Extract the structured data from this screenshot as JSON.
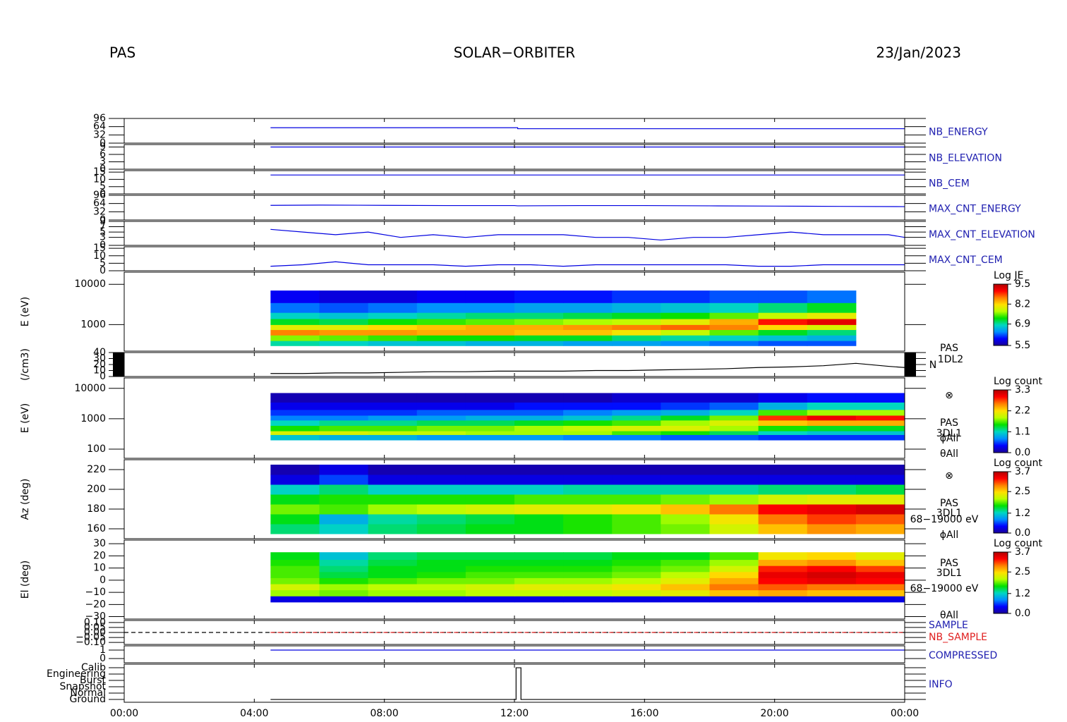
{
  "header": {
    "left": "PAS",
    "center": "SOLAR−ORBITER",
    "right": "23/Jan/2023"
  },
  "xaxis": {
    "xlim": [
      0,
      24
    ],
    "xticks": [
      {
        "value": 0,
        "label": "00:00"
      },
      {
        "value": 4,
        "label": "04:00"
      },
      {
        "value": 8,
        "label": "08:00"
      },
      {
        "value": 12,
        "label": "12:00"
      },
      {
        "value": 16,
        "label": "16:00"
      },
      {
        "value": 20,
        "label": "20:00"
      },
      {
        "value": 24,
        "label": "00:00"
      }
    ]
  },
  "colormap": [
    "#1a0096",
    "#0000ff",
    "#0090ff",
    "#00d8c0",
    "#00e000",
    "#b8ff00",
    "#ffe000",
    "#ff8000",
    "#ff0000",
    "#b00000"
  ],
  "chart_data": [
    {
      "type": "line",
      "names": [
        "NB_ENERGY"
      ],
      "name_colors": [
        "#2020b0"
      ],
      "ylim": [
        0,
        96
      ],
      "yticks": [
        0,
        32,
        64,
        96
      ],
      "series": [
        {
          "color": "#0000e0",
          "x": [
            4.5,
            12.1,
            12.1,
            24
          ],
          "values": [
            60,
            60,
            56,
            56
          ]
        }
      ]
    },
    {
      "type": "line",
      "names": [
        "NB_ELEVATION"
      ],
      "name_colors": [
        "#2020b0"
      ],
      "ylim": [
        0,
        10
      ],
      "yticks": [
        0,
        3,
        6,
        9
      ],
      "series": [
        {
          "color": "#0000e0",
          "x": [
            4.5,
            24
          ],
          "values": [
            9,
            9
          ]
        }
      ]
    },
    {
      "type": "line",
      "names": [
        "NB_CEM"
      ],
      "name_colors": [
        "#2020b0"
      ],
      "ylim": [
        0,
        16
      ],
      "yticks": [
        0,
        5,
        10,
        15
      ],
      "series": [
        {
          "color": "#0000e0",
          "x": [
            4.5,
            24
          ],
          "values": [
            13,
            13
          ]
        }
      ]
    },
    {
      "type": "line",
      "names": [
        "MAX_CNT_ENERGY"
      ],
      "name_colors": [
        "#2020b0"
      ],
      "ylim": [
        0,
        96
      ],
      "yticks": [
        0,
        32,
        64,
        96
      ],
      "series": [
        {
          "color": "#0000e0",
          "x": [
            4.5,
            6,
            8,
            10,
            12,
            12.1,
            14,
            16,
            18,
            20,
            22,
            24
          ],
          "values": [
            57,
            58,
            57,
            56,
            56,
            55,
            56,
            56,
            55,
            54,
            53,
            52
          ]
        }
      ]
    },
    {
      "type": "line",
      "names": [
        "MAX_CNT_ELEVATION"
      ],
      "name_colors": [
        "#2020b0"
      ],
      "ylim": [
        0,
        9
      ],
      "yticks": [
        0,
        3,
        5,
        7,
        9
      ],
      "series": [
        {
          "color": "#0000e0",
          "x": [
            4.5,
            5.5,
            6.5,
            7.5,
            8.5,
            9.5,
            10.5,
            11.5,
            12.5,
            13.5,
            14.5,
            15.5,
            16.5,
            17.5,
            18.5,
            19.5,
            20.5,
            21.5,
            22.5,
            23.5,
            24
          ],
          "values": [
            6,
            5,
            4,
            5,
            3,
            4,
            3,
            4,
            4,
            4,
            3,
            3,
            2,
            3,
            3,
            4,
            5,
            4,
            4,
            4,
            3
          ]
        }
      ]
    },
    {
      "type": "line",
      "names": [
        "MAX_CNT_CEM"
      ],
      "name_colors": [
        "#2020b0"
      ],
      "ylim": [
        0,
        16
      ],
      "yticks": [
        0,
        5,
        10,
        15
      ],
      "series": [
        {
          "color": "#0000e0",
          "x": [
            4.5,
            5.5,
            6.5,
            7.5,
            8.5,
            9.5,
            10.5,
            11.5,
            12.5,
            13.5,
            14.5,
            15.5,
            16.5,
            17.5,
            18.5,
            19.5,
            20.5,
            21.5,
            22.5,
            23.5,
            24
          ],
          "values": [
            3,
            4,
            6,
            4,
            4,
            4,
            3,
            4,
            4,
            3,
            4,
            4,
            4,
            4,
            4,
            3,
            3,
            4,
            4,
            4,
            4
          ]
        }
      ]
    },
    {
      "type": "heatmap",
      "ylabel": "E (eV)",
      "log": true,
      "ylim": [
        220,
        20000
      ],
      "yticks": [
        1000,
        10000
      ],
      "zlabel": "Log JE",
      "zlim": [
        5.5,
        9.5
      ],
      "zticks": [
        5.5,
        6.9,
        8.2,
        9.5
      ],
      "x_edges": [
        4.5,
        6,
        7.5,
        9,
        10.5,
        12,
        13.5,
        15,
        16.5,
        18,
        19.5,
        21,
        22.5
      ],
      "y_edges": [
        300,
        400,
        550,
        750,
        1000,
        1400,
        2000,
        3500,
        7000
      ],
      "z": [
        [
          6.9,
          6.8,
          6.7,
          6.7,
          6.6,
          6.6,
          6.5,
          6.5,
          6.4,
          6.3,
          6.2,
          6.2
        ],
        [
          7.6,
          7.5,
          7.4,
          7.3,
          7.3,
          7.2,
          7.2,
          7.0,
          6.9,
          6.8,
          6.7,
          6.6
        ],
        [
          8.6,
          8.5,
          8.5,
          8.4,
          8.4,
          8.3,
          8.3,
          8.1,
          7.8,
          7.5,
          7.2,
          7.0
        ],
        [
          8.0,
          8.0,
          8.2,
          8.3,
          8.4,
          8.4,
          8.5,
          8.6,
          8.7,
          8.6,
          8.2,
          7.9
        ],
        [
          7.2,
          7.1,
          7.3,
          7.4,
          7.5,
          7.6,
          7.7,
          7.8,
          8.0,
          8.4,
          9.0,
          9.2
        ],
        [
          6.8,
          6.7,
          6.8,
          6.9,
          7.0,
          7.0,
          7.1,
          7.2,
          7.3,
          7.5,
          7.8,
          8.0
        ],
        [
          6.3,
          6.2,
          6.3,
          6.4,
          6.4,
          6.5,
          6.5,
          6.6,
          6.7,
          6.8,
          7.0,
          7.2
        ],
        [
          5.9,
          5.8,
          5.8,
          5.9,
          5.9,
          6.0,
          6.0,
          6.1,
          6.1,
          6.2,
          6.2,
          6.3
        ]
      ]
    },
    {
      "type": "line",
      "ylabel": "(/cm3)",
      "annotations": [
        "PAS",
        "1DL2",
        "N"
      ],
      "ylim": [
        0,
        40
      ],
      "yticks": [
        0,
        10,
        20,
        30,
        40
      ],
      "series": [
        {
          "color": "#000000",
          "x": [
            4.5,
            5.5,
            6.5,
            7.5,
            8.5,
            9.5,
            10.5,
            11.5,
            12.5,
            13.5,
            14.5,
            15.5,
            16.5,
            17.5,
            18.5,
            19.5,
            20.5,
            21.5,
            22.5,
            23.5,
            24
          ],
          "values": [
            5,
            5,
            6,
            6,
            7,
            8,
            8,
            9,
            9,
            9,
            10,
            10,
            11,
            12,
            13,
            15,
            16,
            18,
            22,
            17,
            15
          ]
        }
      ]
    },
    {
      "type": "heatmap",
      "ylabel": "E (eV)",
      "log": true,
      "annotations": [
        "⊗",
        "PAS",
        "3DL1",
        "ϕAll",
        "θAll"
      ],
      "ylim": [
        50,
        22000
      ],
      "yticks": [
        100,
        1000,
        10000
      ],
      "zlabel": "Log count",
      "zlim": [
        0,
        3.3
      ],
      "zticks": [
        {
          "value": 0,
          "label": "0.0"
        },
        1.1,
        2.2,
        3.3
      ],
      "x_edges": [
        4.5,
        6,
        7.5,
        9,
        10.5,
        12,
        13.5,
        15,
        16.5,
        18,
        19.5,
        21,
        22.5,
        24
      ],
      "y_edges": [
        200,
        300,
        400,
        600,
        900,
        1300,
        2000,
        3500,
        7000
      ],
      "z": [
        [
          1.0,
          0.9,
          0.9,
          0.8,
          0.8,
          0.8,
          0.7,
          0.7,
          0.6,
          0.6,
          0.5,
          0.5,
          0.5
        ],
        [
          2.0,
          2.0,
          1.9,
          1.9,
          1.8,
          1.8,
          1.8,
          1.6,
          1.5,
          1.3,
          1.1,
          1.0,
          1.0
        ],
        [
          1.5,
          1.6,
          1.6,
          1.7,
          1.7,
          1.8,
          1.9,
          2.0,
          2.0,
          1.8,
          1.5,
          1.4,
          1.4
        ],
        [
          1.1,
          1.2,
          1.2,
          1.3,
          1.3,
          1.4,
          1.5,
          1.6,
          1.8,
          2.0,
          2.3,
          2.4,
          2.4
        ],
        [
          0.7,
          0.7,
          0.8,
          0.8,
          0.9,
          0.9,
          1.0,
          1.2,
          1.4,
          1.7,
          2.8,
          3.0,
          2.9
        ],
        [
          0.5,
          0.5,
          0.5,
          0.6,
          0.6,
          0.6,
          0.7,
          0.8,
          0.9,
          1.1,
          1.6,
          1.8,
          1.8
        ],
        [
          0.3,
          0.3,
          0.3,
          0.3,
          0.3,
          0.4,
          0.4,
          0.4,
          0.5,
          0.6,
          0.9,
          1.1,
          1.1
        ],
        [
          0.1,
          0.1,
          0.1,
          0.1,
          0.1,
          0.1,
          0.1,
          0.2,
          0.2,
          0.2,
          0.3,
          0.4,
          0.4
        ]
      ]
    },
    {
      "type": "heatmap",
      "ylabel": "Az (deg)",
      "annotations": [
        "⊗",
        "PAS",
        "3DL1",
        "68−19000 eV",
        "ϕAll"
      ],
      "ylim": [
        150,
        230
      ],
      "yticks": [
        160,
        180,
        200,
        220
      ],
      "zlabel": "Log count",
      "zlim": [
        0,
        3.7
      ],
      "zticks": [
        {
          "value": 0,
          "label": "0.0"
        },
        1.2,
        2.5,
        3.7
      ],
      "x_edges": [
        4.5,
        6,
        7.5,
        9,
        10.5,
        12,
        13.5,
        15,
        16.5,
        18,
        19.5,
        21,
        22.5,
        24
      ],
      "y_edges": [
        155,
        165,
        175,
        185,
        195,
        205,
        215,
        225
      ],
      "z": [
        [
          1.4,
          1.2,
          1.4,
          1.5,
          1.6,
          1.6,
          1.7,
          1.8,
          1.9,
          2.2,
          2.6,
          2.8,
          2.7
        ],
        [
          1.6,
          1.0,
          1.3,
          1.4,
          1.5,
          1.6,
          1.7,
          1.8,
          2.0,
          2.4,
          2.9,
          3.1,
          3.0
        ],
        [
          1.9,
          1.8,
          2.0,
          2.1,
          2.2,
          2.3,
          2.3,
          2.4,
          2.6,
          2.9,
          3.3,
          3.4,
          3.5
        ],
        [
          1.6,
          1.7,
          1.7,
          1.7,
          1.7,
          1.8,
          1.8,
          1.8,
          1.9,
          2.0,
          2.2,
          2.3,
          2.3
        ],
        [
          1.2,
          1.4,
          1.2,
          1.2,
          1.2,
          1.2,
          1.3,
          1.3,
          1.3,
          1.3,
          1.4,
          1.4,
          1.5
        ],
        [
          0.3,
          0.6,
          0.3,
          0.3,
          0.3,
          0.3,
          0.3,
          0.3,
          0.3,
          0.3,
          0.3,
          0.3,
          0.3
        ],
        [
          0.1,
          0.3,
          0.1,
          0.1,
          0.1,
          0.1,
          0.1,
          0.1,
          0.1,
          0.1,
          0.1,
          0.1,
          0.1
        ]
      ]
    },
    {
      "type": "heatmap",
      "ylabel": "El (deg)",
      "annotations": [
        "PAS",
        "3DL1",
        "68−19000 eV",
        "θAll"
      ],
      "ylim": [
        -32,
        33
      ],
      "yticks": [
        {
          "value": -30,
          "label": "−30"
        },
        {
          "value": -20,
          "label": "−20"
        },
        {
          "value": -10,
          "label": "−10"
        },
        0,
        10,
        20,
        30
      ],
      "zlabel": "Log count",
      "zlim": [
        0,
        3.7
      ],
      "zticks": [
        {
          "value": 0,
          "label": "0.0"
        },
        1.2,
        2.5,
        3.7
      ],
      "x_edges": [
        4.5,
        6,
        7.5,
        9,
        10.5,
        12,
        13.5,
        15,
        16.5,
        18,
        19.5,
        21,
        22.5,
        24
      ],
      "y_edges": [
        -18,
        -13,
        -8,
        -3,
        2,
        7,
        12,
        17,
        23
      ],
      "z": [
        [
          0.3,
          0.3,
          0.3,
          0.3,
          0.3,
          0.3,
          0.3,
          0.3,
          0.3,
          0.3,
          0.3,
          0.3,
          0.3
        ],
        [
          2.0,
          1.9,
          2.0,
          2.0,
          2.1,
          2.1,
          2.1,
          2.2,
          2.3,
          2.6,
          2.7,
          2.6,
          2.6
        ],
        [
          2.2,
          2.0,
          2.1,
          2.1,
          2.2,
          2.3,
          2.3,
          2.4,
          2.6,
          2.9,
          3.0,
          2.9,
          2.9
        ],
        [
          1.9,
          1.7,
          1.8,
          1.9,
          1.9,
          2.0,
          2.0,
          2.1,
          2.3,
          2.7,
          3.3,
          3.4,
          3.3
        ],
        [
          1.8,
          1.5,
          1.6,
          1.7,
          1.8,
          1.8,
          1.8,
          1.9,
          2.1,
          2.5,
          3.4,
          3.5,
          3.4
        ],
        [
          1.8,
          1.4,
          1.6,
          1.6,
          1.7,
          1.7,
          1.7,
          1.8,
          1.9,
          2.2,
          3.2,
          3.3,
          3.1
        ],
        [
          1.7,
          1.3,
          1.5,
          1.6,
          1.6,
          1.6,
          1.6,
          1.7,
          1.8,
          2.0,
          2.7,
          2.8,
          2.6
        ],
        [
          1.6,
          1.1,
          1.4,
          1.5,
          1.5,
          1.5,
          1.5,
          1.6,
          1.6,
          1.8,
          2.4,
          2.5,
          2.3
        ]
      ]
    },
    {
      "type": "line",
      "names": [
        "SAMPLE",
        "NB_SAMPLE"
      ],
      "name_colors": [
        "#2020b0",
        "#e02020"
      ],
      "ylim": [
        -0.12,
        0.12
      ],
      "yticks": [
        {
          "value": -0.1,
          "label": "−0.10"
        },
        {
          "value": -0.05,
          "label": "−0.05"
        },
        {
          "value": 0,
          "label": "0.00"
        },
        0.05,
        {
          "value": 0.1,
          "label": "0.10"
        }
      ],
      "series": [
        {
          "color": "#000000",
          "dashed": true,
          "x": [
            0,
            24
          ],
          "values": [
            0,
            0
          ]
        },
        {
          "color": "#e02020",
          "dashed": true,
          "x": [
            4.5,
            24
          ],
          "values": [
            0,
            0
          ]
        }
      ]
    },
    {
      "type": "line",
      "names": [
        "COMPRESSED"
      ],
      "name_colors": [
        "#2020b0"
      ],
      "ylim": [
        -0.5,
        1.5
      ],
      "yticks": [
        0,
        1
      ],
      "series": [
        {
          "color": "#0000e0",
          "x": [
            4.5,
            24
          ],
          "values": [
            1,
            1
          ]
        }
      ]
    },
    {
      "type": "line",
      "names": [
        "INFO"
      ],
      "name_colors": [
        "#2020b0"
      ],
      "ylim": [
        -0.44,
        5.56
      ],
      "yticks": [
        {
          "value": 0,
          "label": "Ground"
        },
        {
          "value": 1,
          "label": "Normal"
        },
        {
          "value": 2,
          "label": "Snapshot"
        },
        {
          "value": 3,
          "label": "Burst"
        },
        {
          "value": 4,
          "label": "Engineering"
        },
        {
          "value": 5,
          "label": "Calib"
        }
      ],
      "series": [
        {
          "color": "#000000",
          "x": [
            4.5,
            12.05,
            12.05,
            12.2,
            12.2,
            24
          ],
          "values": [
            0,
            0,
            5,
            5,
            0,
            0
          ]
        }
      ]
    }
  ]
}
